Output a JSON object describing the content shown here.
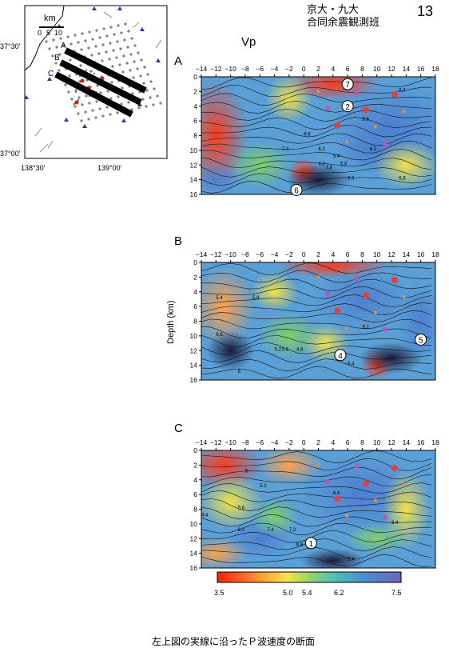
{
  "header": {
    "line1": "京大・九大",
    "line2": "合同余震観測班",
    "page_number": "13"
  },
  "map": {
    "scale_title": "km",
    "scale_ticks": [
      "0",
      "5",
      "10"
    ],
    "lat_labels": [
      "37°30'",
      "37°00'"
    ],
    "lon_labels": [
      "138°30'",
      "139°00'"
    ],
    "profile_labels": [
      "A",
      "B",
      "C"
    ]
  },
  "vp_label": "Vp",
  "axis": {
    "x_ticks": [
      "−14",
      "−12",
      "−10",
      "−8",
      "−6",
      "−4",
      "−2",
      "0",
      "2",
      "4",
      "6",
      "8",
      "10",
      "12",
      "14",
      "16",
      "18"
    ],
    "y_ticks": [
      "0",
      "2",
      "4",
      "6",
      "8",
      "10",
      "12",
      "14",
      "16"
    ],
    "ylabel": "Depth (km)"
  },
  "panels": [
    {
      "letter": "A",
      "markers": [
        "7",
        "2",
        "6"
      ],
      "contours": [
        "7.4",
        "6.2",
        "6.6",
        "5.4",
        "5.8",
        "6.6",
        "6.8",
        "6.2",
        "6.6",
        "6.4",
        "3.8",
        "4.2"
      ]
    },
    {
      "letter": "B",
      "markers": [
        "5",
        "4"
      ],
      "contours": [
        "5.4",
        "6.6",
        "5.8",
        "6.2",
        "5.2",
        "4.8",
        "5.6",
        "6",
        "6.4"
      ]
    },
    {
      "letter": "C",
      "markers": [
        "1"
      ],
      "contours": [
        "5",
        "5.2",
        "6.4",
        "4.4",
        "5.6",
        "6.2",
        "7.4",
        "7.2",
        "6.8",
        "6.4",
        "5.4"
      ]
    }
  ],
  "colorbar": {
    "labels": [
      "3.5",
      "5.0",
      "5.4",
      "6.2",
      "7.5"
    ],
    "colors": [
      "#ff2a1a",
      "#ff9a3a",
      "#f4e24a",
      "#8fd36a",
      "#4cc3a8",
      "#4b8fd0",
      "#6f6bc0"
    ]
  },
  "caption": "左上図の実線に沿ったＰ波速度の断面"
}
